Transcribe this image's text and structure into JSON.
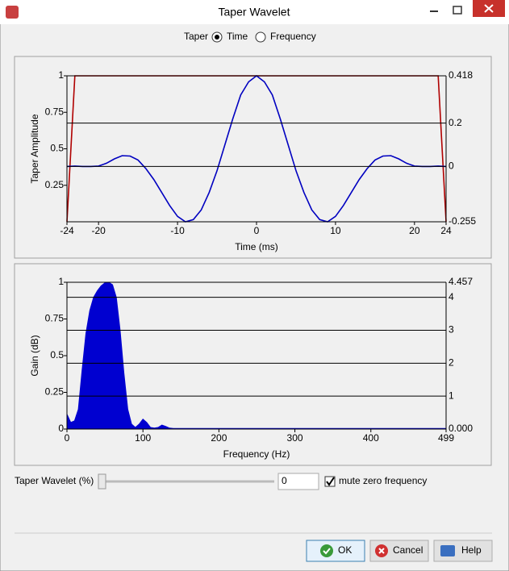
{
  "window": {
    "title": "Taper Wavelet"
  },
  "taper_selector": {
    "label": "Taper",
    "options": [
      {
        "label": "Time",
        "checked": true
      },
      {
        "label": "Frequency",
        "checked": false
      }
    ]
  },
  "chart_data": [
    {
      "type": "line",
      "x_label": "Time (ms)",
      "y_label": "Taper Amplitude",
      "grid": true,
      "xlim": [
        -24,
        24
      ],
      "xticks": [
        -24,
        -20,
        -10,
        0,
        10,
        20,
        24
      ],
      "ylim": [
        0,
        1
      ],
      "yticks": [
        0.25,
        0.5,
        0.75,
        1
      ],
      "y2lim": [
        -0.255,
        0.418
      ],
      "y2ticks": [
        -0.255,
        0,
        0.2,
        0.418
      ],
      "series": [
        {
          "color": "#b00000",
          "x": [
            -24,
            -23,
            23,
            24
          ],
          "values": [
            0,
            1,
            1,
            0
          ]
        },
        {
          "color": "#0000c0",
          "axis": "y2",
          "x": [
            -24,
            -23,
            -22,
            -21,
            -20,
            -19,
            -18,
            -17,
            -16,
            -15,
            -14,
            -13,
            -12,
            -11,
            -10,
            -9,
            -8,
            -7,
            -6,
            -5,
            -4,
            -3,
            -2,
            -1,
            0,
            1,
            2,
            3,
            4,
            5,
            6,
            7,
            8,
            9,
            10,
            11,
            12,
            13,
            14,
            15,
            16,
            17,
            18,
            19,
            20,
            21,
            22,
            23,
            24
          ],
          "values": [
            0,
            0.002,
            0,
            0,
            0.002,
            0.015,
            0.035,
            0.05,
            0.048,
            0.03,
            -0.01,
            -0.06,
            -0.12,
            -0.18,
            -0.23,
            -0.255,
            -0.245,
            -0.2,
            -0.12,
            -0.02,
            0.1,
            0.22,
            0.33,
            0.39,
            0.418,
            0.39,
            0.33,
            0.22,
            0.1,
            -0.02,
            -0.12,
            -0.2,
            -0.245,
            -0.255,
            -0.23,
            -0.18,
            -0.12,
            -0.06,
            -0.01,
            0.03,
            0.048,
            0.05,
            0.035,
            0.015,
            0.002,
            0,
            0,
            0.002,
            0
          ]
        }
      ]
    },
    {
      "type": "area",
      "x_label": "Frequency (Hz)",
      "y_label": "Gain (dB)",
      "grid": true,
      "xlim": [
        0,
        499
      ],
      "xticks": [
        0,
        100,
        200,
        300,
        400,
        499
      ],
      "ylim": [
        0,
        1
      ],
      "yticks": [
        0,
        0.25,
        0.5,
        0.75,
        1
      ],
      "y2lim": [
        0,
        4.457
      ],
      "y2ticks": [
        {
          "value": 0,
          "label": "0.000"
        },
        1,
        2,
        3,
        4,
        4.457
      ],
      "series": [
        {
          "color": "#0000d0",
          "axis": "y2",
          "x": [
            0,
            5,
            10,
            15,
            20,
            25,
            30,
            35,
            40,
            45,
            50,
            55,
            60,
            65,
            70,
            75,
            80,
            85,
            90,
            95,
            100,
            105,
            110,
            115,
            120,
            125,
            130,
            135,
            140,
            145,
            150,
            200,
            250,
            300,
            350,
            400,
            450,
            499
          ],
          "values": [
            0.45,
            0.2,
            0.25,
            0.6,
            1.8,
            2.9,
            3.6,
            4.0,
            4.2,
            4.35,
            4.44,
            4.457,
            4.38,
            4.0,
            3.0,
            1.7,
            0.6,
            0.15,
            0.05,
            0.15,
            0.3,
            0.2,
            0.05,
            0.03,
            0.05,
            0.12,
            0.08,
            0.03,
            0.02,
            0.02,
            0.02,
            0.02,
            0.02,
            0.02,
            0.02,
            0.02,
            0.02,
            0.02
          ]
        }
      ]
    }
  ],
  "controls": {
    "slider_label": "Taper Wavelet (%)",
    "slider_value": 0,
    "mute": {
      "label": "mute zero frequency",
      "checked": true
    }
  },
  "buttons": [
    "OK",
    "Cancel",
    "Help"
  ]
}
